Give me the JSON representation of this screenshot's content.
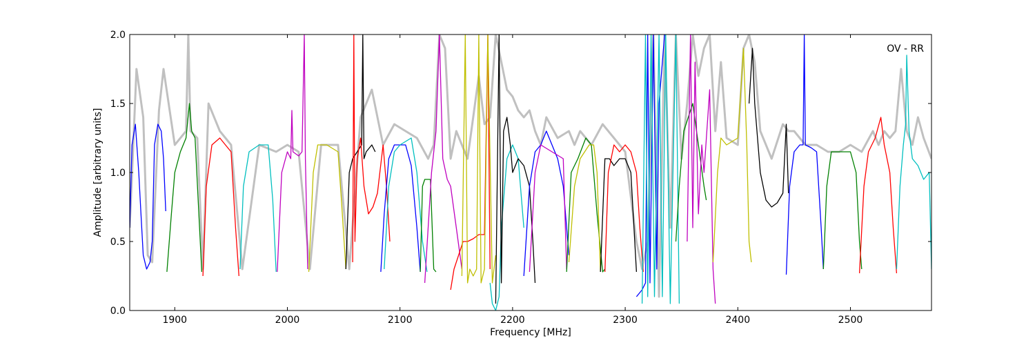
{
  "chart_data": {
    "type": "line",
    "title": "",
    "annotation": "OV - RR",
    "xlabel": "Frequency [MHz]",
    "ylabel": "Amplitude [arbitrary units]",
    "xlim": [
      1860,
      2572
    ],
    "ylim": [
      0.0,
      2.0
    ],
    "x_ticks": [
      1900,
      2000,
      2100,
      2200,
      2300,
      2400,
      2500
    ],
    "x_tick_labels": [
      "1900",
      "2000",
      "2100",
      "2200",
      "2300",
      "2400",
      "2500"
    ],
    "y_ticks": [
      0.0,
      0.5,
      1.0,
      1.5,
      2.0
    ],
    "y_tick_labels": [
      "0.0",
      "0.5",
      "1.0",
      "1.5",
      "2.0"
    ],
    "grid": false,
    "background_series": {
      "color": "#c0c0c0",
      "x": [
        1860,
        1866,
        1872,
        1876,
        1880,
        1886,
        1890,
        1900,
        1910,
        1912,
        1914,
        1920,
        1925,
        1930,
        1935,
        1940,
        1950,
        1960,
        1975,
        1990,
        2000,
        2010,
        2020,
        2030,
        2045,
        2055,
        2065,
        2075,
        2085,
        2095,
        2105,
        2115,
        2125,
        2130,
        2135,
        2140,
        2145,
        2150,
        2155,
        2160,
        2165,
        2170,
        2175,
        2180,
        2185,
        2190,
        2195,
        2200,
        2205,
        2210,
        2215,
        2220,
        2225,
        2230,
        2240,
        2250,
        2255,
        2260,
        2270,
        2280,
        2290,
        2300,
        2310,
        2315,
        2320,
        2325,
        2330,
        2335,
        2340,
        2345,
        2350,
        2355,
        2360,
        2365,
        2370,
        2375,
        2380,
        2385,
        2390,
        2400,
        2405,
        2410,
        2415,
        2420,
        2430,
        2440,
        2445,
        2450,
        2460,
        2470,
        2480,
        2490,
        2500,
        2510,
        2520,
        2525,
        2530,
        2535,
        2540,
        2545,
        2550,
        2555,
        2560,
        2565,
        2572
      ],
      "y": [
        0.6,
        1.75,
        1.4,
        0.4,
        0.35,
        1.45,
        1.75,
        1.2,
        1.3,
        2.0,
        1.3,
        1.25,
        0.3,
        1.5,
        1.4,
        1.3,
        1.2,
        0.3,
        1.2,
        1.15,
        1.2,
        1.15,
        0.3,
        1.2,
        1.2,
        0.3,
        1.4,
        1.6,
        1.2,
        1.35,
        1.3,
        1.25,
        1.1,
        1.2,
        2.0,
        1.9,
        1.1,
        1.3,
        1.2,
        1.1,
        1.4,
        1.7,
        1.35,
        1.4,
        2.0,
        1.8,
        1.6,
        1.55,
        1.45,
        1.4,
        1.45,
        1.3,
        1.2,
        1.4,
        1.25,
        1.3,
        1.2,
        1.3,
        1.2,
        1.35,
        1.25,
        1.15,
        0.5,
        0.3,
        0.5,
        2.0,
        0.1,
        2.0,
        0.6,
        2.0,
        1.1,
        1.5,
        2.0,
        1.7,
        1.9,
        2.0,
        1.3,
        1.8,
        1.25,
        1.2,
        1.9,
        2.0,
        1.8,
        1.3,
        1.1,
        1.35,
        1.3,
        1.3,
        1.2,
        1.2,
        1.15,
        1.15,
        1.2,
        1.15,
        1.3,
        1.2,
        1.3,
        1.25,
        1.3,
        1.75,
        1.3,
        1.2,
        1.4,
        1.25,
        1.1
      ]
    },
    "series": [
      {
        "color": "#0000ff",
        "x": [
          1860,
          1862,
          1865,
          1868,
          1870,
          1872,
          1875,
          1878,
          1880,
          1882,
          1885,
          1888,
          1890,
          1892
        ],
        "y": [
          0.6,
          1.2,
          1.35,
          1.0,
          0.7,
          0.4,
          0.3,
          0.35,
          0.5,
          1.2,
          1.35,
          1.3,
          1.1,
          0.72
        ]
      },
      {
        "color": "#008000",
        "x": [
          1893,
          1897,
          1900,
          1905,
          1910,
          1913,
          1915,
          1918,
          1922,
          1924
        ],
        "y": [
          0.28,
          0.7,
          1.0,
          1.15,
          1.25,
          1.5,
          1.3,
          1.25,
          0.6,
          0.28
        ]
      },
      {
        "color": "#ff0000",
        "x": [
          1925,
          1928,
          1933,
          1940,
          1945,
          1950,
          1954,
          1957
        ],
        "y": [
          0.25,
          0.9,
          1.2,
          1.25,
          1.2,
          1.15,
          0.6,
          0.25
        ]
      },
      {
        "color": "#00bfbf",
        "x": [
          1958,
          1961,
          1966,
          1975,
          1983,
          1987,
          1990
        ],
        "y": [
          0.3,
          0.9,
          1.15,
          1.2,
          1.2,
          0.8,
          0.28
        ]
      },
      {
        "color": "#bf00bf",
        "x": [
          1991,
          1995,
          2000,
          2003,
          2004,
          2005,
          2010,
          2013,
          2015,
          2016,
          2018
        ],
        "y": [
          0.28,
          1.0,
          1.15,
          1.1,
          1.45,
          1.15,
          1.12,
          1.15,
          2.0,
          1.1,
          0.3
        ]
      },
      {
        "color": "#bfbf00",
        "x": [
          2019,
          2023,
          2027,
          2035,
          2045,
          2048,
          2052
        ],
        "y": [
          0.28,
          1.0,
          1.2,
          1.2,
          1.15,
          0.8,
          0.3
        ]
      },
      {
        "color": "#000000",
        "x": [
          2052,
          2055,
          2058,
          2062,
          2066,
          2067,
          2068,
          2070,
          2075,
          2078
        ],
        "y": [
          0.3,
          1.0,
          1.1,
          1.15,
          1.2,
          2.0,
          1.1,
          1.15,
          1.2,
          1.15
        ]
      },
      {
        "color": "#ff0000",
        "x": [
          2058,
          2059,
          2060,
          2062,
          2065,
          2068,
          2072,
          2076,
          2080,
          2085,
          2088,
          2091
        ],
        "y": [
          0.35,
          2.0,
          0.5,
          1.1,
          1.25,
          0.9,
          0.7,
          0.75,
          0.85,
          1.2,
          0.9,
          0.5
        ]
      },
      {
        "color": "#0000ff",
        "x": [
          2083,
          2086,
          2090,
          2095,
          2105,
          2110,
          2115,
          2118
        ],
        "y": [
          0.28,
          0.7,
          1.1,
          1.2,
          1.2,
          1.05,
          0.6,
          0.28
        ]
      },
      {
        "color": "#00bfbf",
        "x": [
          2086,
          2090,
          2095,
          2100,
          2110,
          2115,
          2120,
          2124
        ],
        "y": [
          0.3,
          0.9,
          1.15,
          1.2,
          1.25,
          1.0,
          0.5,
          0.28
        ]
      },
      {
        "color": "#008000",
        "x": [
          2118,
          2120,
          2122,
          2127,
          2130,
          2132
        ],
        "y": [
          0.28,
          0.9,
          0.95,
          0.95,
          0.3,
          0.28
        ]
      },
      {
        "color": "#bf00bf",
        "x": [
          2122,
          2125,
          2128,
          2132,
          2135,
          2138,
          2142,
          2145,
          2150,
          2155
        ],
        "y": [
          0.2,
          0.6,
          1.0,
          1.3,
          2.0,
          1.1,
          0.95,
          0.9,
          0.6,
          0.3
        ]
      },
      {
        "color": "#ff0000",
        "x": [
          2145,
          2148,
          2152,
          2156,
          2160,
          2165,
          2170,
          2175,
          2178,
          2180
        ],
        "y": [
          0.15,
          0.3,
          0.4,
          0.5,
          0.5,
          0.52,
          0.55,
          0.55,
          2.0,
          0.3
        ]
      },
      {
        "color": "#bfbf00",
        "x": [
          2155,
          2158,
          2160,
          2162,
          2165,
          2168,
          2170,
          2172,
          2175,
          2178,
          2182,
          2185
        ],
        "y": [
          0.25,
          2.0,
          0.2,
          0.3,
          0.25,
          0.3,
          2.0,
          0.2,
          0.3,
          2.0,
          0.2,
          0.4
        ]
      },
      {
        "color": "#00bfbf",
        "x": [
          2180,
          2182,
          2185,
          2188,
          2190,
          2195,
          2200,
          2205,
          2210
        ],
        "y": [
          0.2,
          0.05,
          0.0,
          0.1,
          0.6,
          1.1,
          1.2,
          1.1,
          0.6
        ]
      },
      {
        "color": "#000000",
        "x": [
          2185,
          2188,
          2190,
          2192,
          2195,
          2198,
          2200,
          2205,
          2210,
          2215,
          2218,
          2220
        ],
        "y": [
          0.05,
          2.0,
          0.2,
          1.3,
          1.4,
          1.2,
          1.0,
          1.1,
          1.05,
          0.9,
          0.5,
          0.2
        ]
      },
      {
        "color": "#0000ff",
        "x": [
          2210,
          2215,
          2220,
          2225,
          2230,
          2235,
          2240,
          2245,
          2250
        ],
        "y": [
          0.25,
          0.9,
          1.15,
          1.2,
          1.3,
          1.2,
          1.1,
          0.9,
          0.4
        ]
      },
      {
        "color": "#bf00bf",
        "x": [
          2215,
          2220,
          2225,
          2235,
          2245,
          2248
        ],
        "y": [
          0.28,
          1.0,
          1.2,
          1.15,
          1.1,
          0.3
        ]
      },
      {
        "color": "#008000",
        "x": [
          2248,
          2252,
          2258,
          2265,
          2270,
          2275,
          2280,
          2282
        ],
        "y": [
          0.28,
          1.0,
          1.1,
          1.25,
          1.2,
          0.7,
          0.28,
          0.3
        ]
      },
      {
        "color": "#bfbf00",
        "x": [
          2250,
          2255,
          2260,
          2268,
          2272,
          2275,
          2278
        ],
        "y": [
          0.35,
          0.9,
          1.1,
          1.2,
          1.2,
          1.0,
          0.28
        ]
      },
      {
        "color": "#000000",
        "x": [
          2278,
          2282,
          2286,
          2290,
          2295,
          2300,
          2305,
          2310
        ],
        "y": [
          0.28,
          1.1,
          1.1,
          1.05,
          1.1,
          1.1,
          1.0,
          0.28
        ]
      },
      {
        "color": "#ff0000",
        "x": [
          2282,
          2285,
          2290,
          2295,
          2300,
          2305,
          2310,
          2313,
          2316
        ],
        "y": [
          0.28,
          1.0,
          1.2,
          1.15,
          1.2,
          1.15,
          1.0,
          0.6,
          0.28
        ]
      },
      {
        "color": "#0000ff",
        "x": [
          2310,
          2315,
          2318,
          2320,
          2322,
          2325,
          2328,
          2330,
          2335
        ],
        "y": [
          0.1,
          0.15,
          0.2,
          2.0,
          0.2,
          2.0,
          0.3,
          1.5,
          2.0
        ]
      },
      {
        "color": "#00bfbf",
        "x": [
          2315,
          2318,
          2320,
          2323,
          2326,
          2330,
          2333,
          2336,
          2340,
          2345,
          2348
        ],
        "y": [
          0.05,
          2.0,
          0.1,
          2.0,
          0.1,
          2.0,
          0.1,
          2.0,
          0.05,
          2.0,
          0.05
        ]
      },
      {
        "color": "#008000",
        "x": [
          2345,
          2348,
          2352,
          2360,
          2365,
          2370,
          2372
        ],
        "y": [
          0.5,
          0.9,
          1.3,
          1.5,
          1.2,
          0.9,
          0.8
        ]
      },
      {
        "color": "#bf00bf",
        "x": [
          2355,
          2358,
          2360,
          2362,
          2365,
          2368,
          2370,
          2375,
          2378,
          2380
        ],
        "y": [
          0.5,
          2.0,
          0.6,
          1.8,
          0.7,
          1.2,
          1.0,
          1.6,
          0.3,
          0.05
        ]
      },
      {
        "color": "#bfbf00",
        "x": [
          2378,
          2382,
          2385,
          2390,
          2400,
          2405,
          2408,
          2410,
          2412
        ],
        "y": [
          0.35,
          1.0,
          1.25,
          1.2,
          1.25,
          1.9,
          1.2,
          0.5,
          0.35
        ]
      },
      {
        "color": "#000000",
        "x": [
          2410,
          2413,
          2415,
          2420,
          2425,
          2430,
          2435,
          2440,
          2443,
          2445
        ],
        "y": [
          1.5,
          1.9,
          1.5,
          1.0,
          0.8,
          0.75,
          0.78,
          0.85,
          1.35,
          0.85
        ]
      },
      {
        "color": "#0000ff",
        "x": [
          2443,
          2446,
          2450,
          2455,
          2458,
          2459,
          2460,
          2465,
          2470,
          2474,
          2476
        ],
        "y": [
          0.26,
          0.9,
          1.15,
          1.2,
          1.2,
          2.0,
          1.2,
          1.18,
          1.15,
          0.6,
          0.3
        ]
      },
      {
        "color": "#008000",
        "x": [
          2476,
          2479,
          2483,
          2490,
          2500,
          2505,
          2508,
          2510
        ],
        "y": [
          0.3,
          0.9,
          1.15,
          1.15,
          1.15,
          1.0,
          0.5,
          0.3
        ]
      },
      {
        "color": "#ff0000",
        "x": [
          2508,
          2512,
          2516,
          2522,
          2527,
          2530,
          2535,
          2538,
          2541
        ],
        "y": [
          0.27,
          0.9,
          1.15,
          1.25,
          1.4,
          1.2,
          1.0,
          0.6,
          0.27
        ]
      },
      {
        "color": "#00bfbf",
        "x": [
          2541,
          2544,
          2547,
          2549,
          2550,
          2552,
          2555,
          2560,
          2565,
          2570,
          2572
        ],
        "y": [
          0.3,
          0.9,
          1.2,
          1.35,
          1.85,
          1.3,
          1.1,
          1.05,
          0.95,
          1.0,
          0.3
        ]
      }
    ]
  }
}
